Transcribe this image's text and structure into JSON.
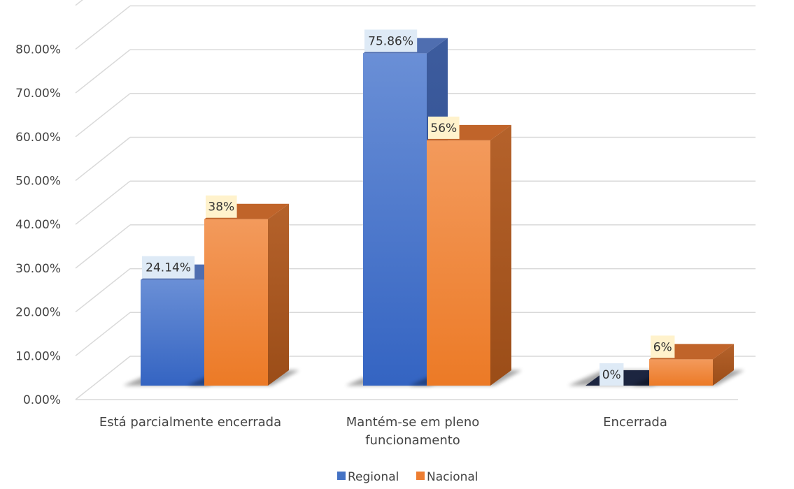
{
  "chart_data": {
    "type": "bar",
    "categories": [
      "Está parcialmente encerrada",
      "Mantém-se em pleno funcionamento",
      "Encerrada"
    ],
    "series": [
      {
        "name": "Regional",
        "values": [
          24.14,
          75.86,
          0
        ],
        "labels": [
          "24.14%",
          "75.86%",
          "0%"
        ],
        "color": "#4472C4"
      },
      {
        "name": "Nacional",
        "values": [
          38,
          56,
          6
        ],
        "labels": [
          "38%",
          "56%",
          "6%"
        ],
        "color": "#ED7D31"
      }
    ],
    "y_ticks": [
      "0.00%",
      "10.00%",
      "20.00%",
      "30.00%",
      "40.00%",
      "50.00%",
      "60.00%",
      "70.00%",
      "80.00%"
    ],
    "ylim": [
      0,
      90
    ],
    "grid": true,
    "legend_position": "bottom",
    "style": "3d-clustered-column"
  }
}
